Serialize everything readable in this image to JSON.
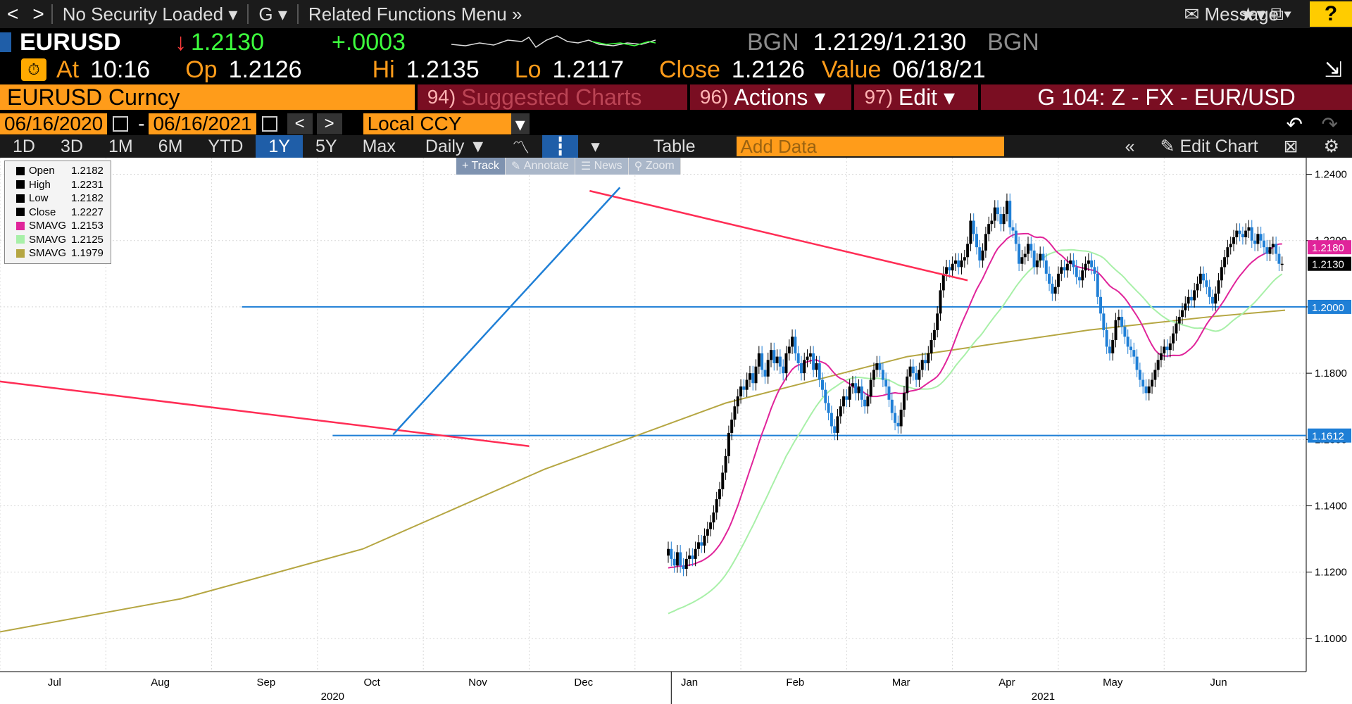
{
  "nav": {
    "back": "<",
    "forward": ">",
    "security": "No Security Loaded",
    "g_menu": "G",
    "related": "Related Functions Menu",
    "message": "Message",
    "help": "?"
  },
  "security": {
    "ticker": "EURUSD",
    "arrow": "↓",
    "last": "1.2130",
    "change": "+.0003",
    "source": "BGN",
    "bid": "1.2129",
    "slash": "/",
    "ask": "1.2130",
    "source2": "BGN"
  },
  "stats": {
    "at_label": "At",
    "at": "10:16",
    "op_label": "Op",
    "op": "1.2126",
    "hi_label": "Hi",
    "hi": "1.2135",
    "lo_label": "Lo",
    "lo": "1.2117",
    "close_label": "Close",
    "close": "1.2126",
    "value_label": "Value",
    "value": "06/18/21"
  },
  "functions": {
    "security_name": "EURUSD Curncy",
    "suggested_num": "94)",
    "suggested": "Suggested Charts",
    "actions_num": "96)",
    "actions": "Actions",
    "edit_num": "97)",
    "edit": "Edit",
    "chart_id": "G 104: Z - FX - EUR/USD"
  },
  "dates": {
    "start": "06/16/2020",
    "dash": "-",
    "end": "06/16/2021",
    "ccy": "Local CCY"
  },
  "tabs": {
    "items": [
      "1D",
      "3D",
      "1M",
      "6M",
      "YTD",
      "1Y",
      "5Y",
      "Max"
    ],
    "active": "1Y",
    "period": "Daily",
    "table": "Table",
    "add_data": "Add Data",
    "edit_chart": "Edit Chart"
  },
  "tools": {
    "track": "+ Track",
    "annotate": "Annotate",
    "news": "News",
    "zoom": "Zoom"
  },
  "legend": [
    {
      "name": "Open",
      "value": "1.2182",
      "color": "#000000"
    },
    {
      "name": "High",
      "value": "1.2231",
      "color": "#000000"
    },
    {
      "name": "Low",
      "value": "1.2182",
      "color": "#000000"
    },
    {
      "name": "Close",
      "value": "1.2227",
      "color": "#000000"
    },
    {
      "name": "SMAVG",
      "value": "1.2153",
      "color": "#e0249a"
    },
    {
      "name": "SMAVG",
      "value": "1.2125",
      "color": "#a8f0a8"
    },
    {
      "name": "SMAVG",
      "value": "1.1979",
      "color": "#b5a642"
    }
  ],
  "chart_data": {
    "type": "line",
    "ylim": [
      1.09,
      1.245
    ],
    "y_ticks": [
      "1.1000",
      "1.1200",
      "1.1400",
      "1.1600",
      "1.1800",
      "1.2000",
      "1.2200",
      "1.2400"
    ],
    "x_ticks": [
      "Jul",
      "Aug",
      "Sep",
      "Oct",
      "Nov",
      "Dec",
      "Jan",
      "Feb",
      "Mar",
      "Apr",
      "May",
      "Jun"
    ],
    "year_labels": [
      "2020",
      "2021"
    ],
    "right_labels": [
      {
        "text": "1.2180",
        "value": 1.218,
        "color": "#e0249a"
      },
      {
        "text": "1.2130",
        "value": 1.213,
        "color": "#000000"
      },
      {
        "text": "1.2000",
        "value": 1.2,
        "color": "#1f7fd6"
      },
      {
        "text": "1.1612",
        "value": 1.1612,
        "color": "#1f7fd6"
      }
    ],
    "close": [
      1.127,
      1.124,
      1.122,
      1.126,
      1.122,
      1.121,
      1.124,
      1.125,
      1.124,
      1.127,
      1.129,
      1.128,
      1.131,
      1.133,
      1.135,
      1.138,
      1.142,
      1.145,
      1.15,
      1.155,
      1.162,
      1.166,
      1.17,
      1.173,
      1.176,
      1.175,
      1.178,
      1.18,
      1.177,
      1.182,
      1.186,
      1.181,
      1.179,
      1.184,
      1.187,
      1.183,
      1.185,
      1.182,
      1.18,
      1.186,
      1.188,
      1.191,
      1.186,
      1.183,
      1.18,
      1.184,
      1.185,
      1.186,
      1.181,
      1.183,
      1.178,
      1.175,
      1.171,
      1.168,
      1.164,
      1.162,
      1.167,
      1.17,
      1.173,
      1.172,
      1.176,
      1.177,
      1.174,
      1.176,
      1.172,
      1.17,
      1.173,
      1.178,
      1.181,
      1.183,
      1.181,
      1.178,
      1.176,
      1.172,
      1.168,
      1.165,
      1.164,
      1.169,
      1.174,
      1.179,
      1.182,
      1.18,
      1.178,
      1.181,
      1.184,
      1.183,
      1.186,
      1.19,
      1.193,
      1.198,
      1.205,
      1.21,
      1.212,
      1.211,
      1.213,
      1.214,
      1.212,
      1.214,
      1.215,
      1.219,
      1.226,
      1.222,
      1.218,
      1.214,
      1.217,
      1.222,
      1.225,
      1.226,
      1.23,
      1.228,
      1.225,
      1.228,
      1.232,
      1.224,
      1.223,
      1.219,
      1.213,
      1.215,
      1.216,
      1.219,
      1.217,
      1.212,
      1.214,
      1.216,
      1.214,
      1.21,
      1.207,
      1.204,
      1.206,
      1.21,
      1.212,
      1.211,
      1.213,
      1.214,
      1.212,
      1.209,
      1.208,
      1.211,
      1.213,
      1.214,
      1.212,
      1.21,
      1.203,
      1.198,
      1.193,
      1.188,
      1.186,
      1.19,
      1.196,
      1.197,
      1.194,
      1.191,
      1.188,
      1.187,
      1.185,
      1.181,
      1.178,
      1.176,
      1.174,
      1.176,
      1.178,
      1.181,
      1.184,
      1.186,
      1.188,
      1.187,
      1.189,
      1.192,
      1.195,
      1.197,
      1.199,
      1.201,
      1.203,
      1.202,
      1.205,
      1.207,
      1.21,
      1.208,
      1.206,
      1.203,
      1.201,
      1.204,
      1.208,
      1.212,
      1.215,
      1.218,
      1.219,
      1.221,
      1.223,
      1.222,
      1.221,
      1.223,
      1.224,
      1.22,
      1.219,
      1.222,
      1.22,
      1.218,
      1.216,
      1.218,
      1.219,
      1.216,
      1.213,
      1.213
    ],
    "sma_pink_start": 1.121,
    "sma_green_start": 1.107,
    "sma_gold": [
      [
        0,
        1.102
      ],
      [
        60,
        1.112
      ],
      [
        120,
        1.127
      ],
      [
        180,
        1.151
      ],
      [
        240,
        1.171
      ],
      [
        300,
        1.185
      ],
      [
        360,
        1.193
      ],
      [
        400,
        1.197
      ],
      [
        425,
        1.199
      ]
    ],
    "h_lines": [
      1.2,
      1.1612
    ],
    "trend_lines": [
      {
        "color": "#ff2d55",
        "from": [
          0,
          1.1775
        ],
        "to": [
          175,
          1.158
        ]
      },
      {
        "color": "#ff2d55",
        "from": [
          195,
          1.235
        ],
        "to": [
          320,
          1.208
        ]
      },
      {
        "color": "#1f7fd6",
        "from": [
          130,
          1.1615
        ],
        "to": [
          205,
          1.236
        ]
      }
    ]
  }
}
